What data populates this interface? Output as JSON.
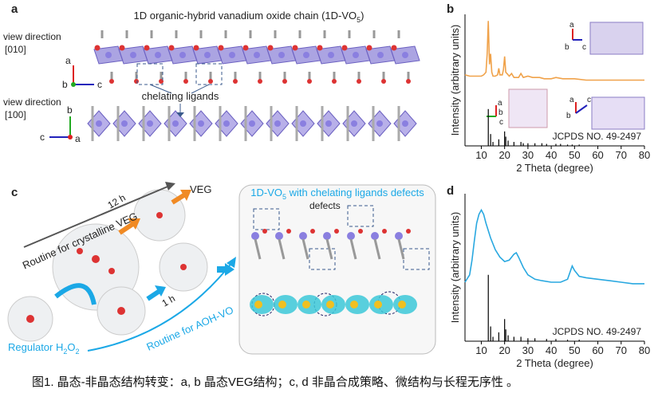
{
  "panel_a": {
    "label": "a",
    "title": "1D organic-hybrid vanadium oxide chain (1D-VO",
    "title_sub": "5",
    "title_end": ")",
    "view1": "view direction",
    "view1_dir": "[010]",
    "view2": "view direction",
    "view2_dir": "[100]",
    "annotation": "chelating ligands",
    "axes1": [
      "a",
      "b",
      "c"
    ],
    "axes2": [
      "b",
      "c",
      "a"
    ]
  },
  "panel_b": {
    "label": "b",
    "inset_axes_1": [
      "a",
      "b",
      "c"
    ],
    "inset_axes_2": [
      "a",
      "b",
      "c"
    ],
    "inset_axes_3": [
      "a",
      "b",
      "c"
    ]
  },
  "panel_c": {
    "label": "c",
    "route_top": "Routine for crystalline VEG",
    "time_top": "12 h",
    "product": "VEG",
    "box_title": "1D-VO",
    "box_title_sub": "5",
    "box_title_end": " with chelating ligands defects",
    "defects": "defects",
    "time_bottom": "1 h",
    "regulator": "Regulator H",
    "regulator_sub": "2",
    "regulator_end": "O",
    "regulator_sub2": "2",
    "route_bottom": "Routine for AOH-VO"
  },
  "panel_d": {
    "label": "d"
  },
  "chart_data": [
    {
      "type": "line",
      "xlabel": "2 Theta (degree)",
      "ylabel": "Intensity (arbitrary units)",
      "xlim": [
        3,
        80
      ],
      "xticks": [
        10,
        20,
        30,
        40,
        50,
        60,
        70,
        80
      ],
      "ylim": [
        0,
        100
      ],
      "x": [
        3,
        5,
        8,
        10,
        11,
        12,
        12.5,
        13,
        13.5,
        14,
        14.5,
        15,
        16,
        17,
        17.5,
        18,
        19,
        19.5,
        20,
        20.5,
        21,
        22,
        23,
        24,
        25,
        26,
        27,
        28,
        30,
        32,
        33,
        35,
        37,
        40,
        42,
        45,
        50,
        55,
        60,
        65,
        70,
        75,
        80
      ],
      "series": [
        {
          "color": "#f0a24a",
          "values": [
            54,
            53,
            53,
            53,
            54,
            56,
            70,
            95,
            62,
            70,
            56,
            53,
            53,
            54,
            59,
            54,
            54,
            58,
            68,
            56,
            55,
            53,
            55,
            52,
            52,
            52,
            55,
            52,
            53,
            52,
            52,
            52,
            51,
            51,
            52,
            51,
            51,
            50,
            50,
            50,
            50,
            50,
            50
          ]
        }
      ],
      "reference": {
        "label": "JCPDS NO. 49-2497",
        "color": "#000000",
        "x": [
          13,
          14,
          15,
          17.5,
          20,
          20.5,
          21.5,
          24,
          27,
          28,
          30,
          33,
          36,
          38,
          42,
          44,
          47,
          49,
          52
        ],
        "values": [
          28,
          9,
          3,
          5,
          11,
          7,
          4,
          3,
          3,
          2,
          2,
          2,
          2,
          1.5,
          1.5,
          1.5,
          1,
          1,
          1
        ]
      }
    },
    {
      "type": "line",
      "xlabel": "2 Theta (degree)",
      "ylabel": "Intensity (arbitrary units)",
      "xlim": [
        3,
        80
      ],
      "xticks": [
        10,
        20,
        30,
        40,
        50,
        60,
        70,
        80
      ],
      "ylim": [
        0,
        100
      ],
      "x": [
        3,
        5,
        6,
        7,
        8,
        9,
        10,
        11,
        12,
        14,
        16,
        18,
        20,
        22,
        24,
        25,
        26,
        28,
        30,
        33,
        36,
        40,
        44,
        47,
        49,
        50,
        52,
        55,
        60,
        65,
        70,
        75,
        80
      ],
      "series": [
        {
          "color": "#29a8e0",
          "values": [
            40,
            45,
            55,
            68,
            80,
            86,
            89,
            86,
            80,
            70,
            62,
            57,
            54,
            55,
            59,
            60,
            57,
            50,
            45,
            42,
            41,
            40,
            40,
            42,
            51,
            48,
            44,
            43,
            42,
            41,
            40,
            39,
            39
          ]
        }
      ],
      "reference": {
        "label": "JCPDS NO. 49-2497",
        "color": "#000000",
        "x": [
          13,
          14,
          15,
          17.5,
          20,
          20.5,
          21.5,
          24,
          27,
          30,
          33,
          38,
          42,
          47,
          52
        ],
        "values": [
          45,
          10,
          3,
          6,
          15,
          8,
          4,
          3,
          3,
          2,
          2,
          1.5,
          1.5,
          1,
          1
        ]
      }
    }
  ],
  "caption": "图1. 晶态-非晶态结构转变：a, b 晶态VEG结构；c, d 非晶合成策略、微结构与长程无序性 。"
}
